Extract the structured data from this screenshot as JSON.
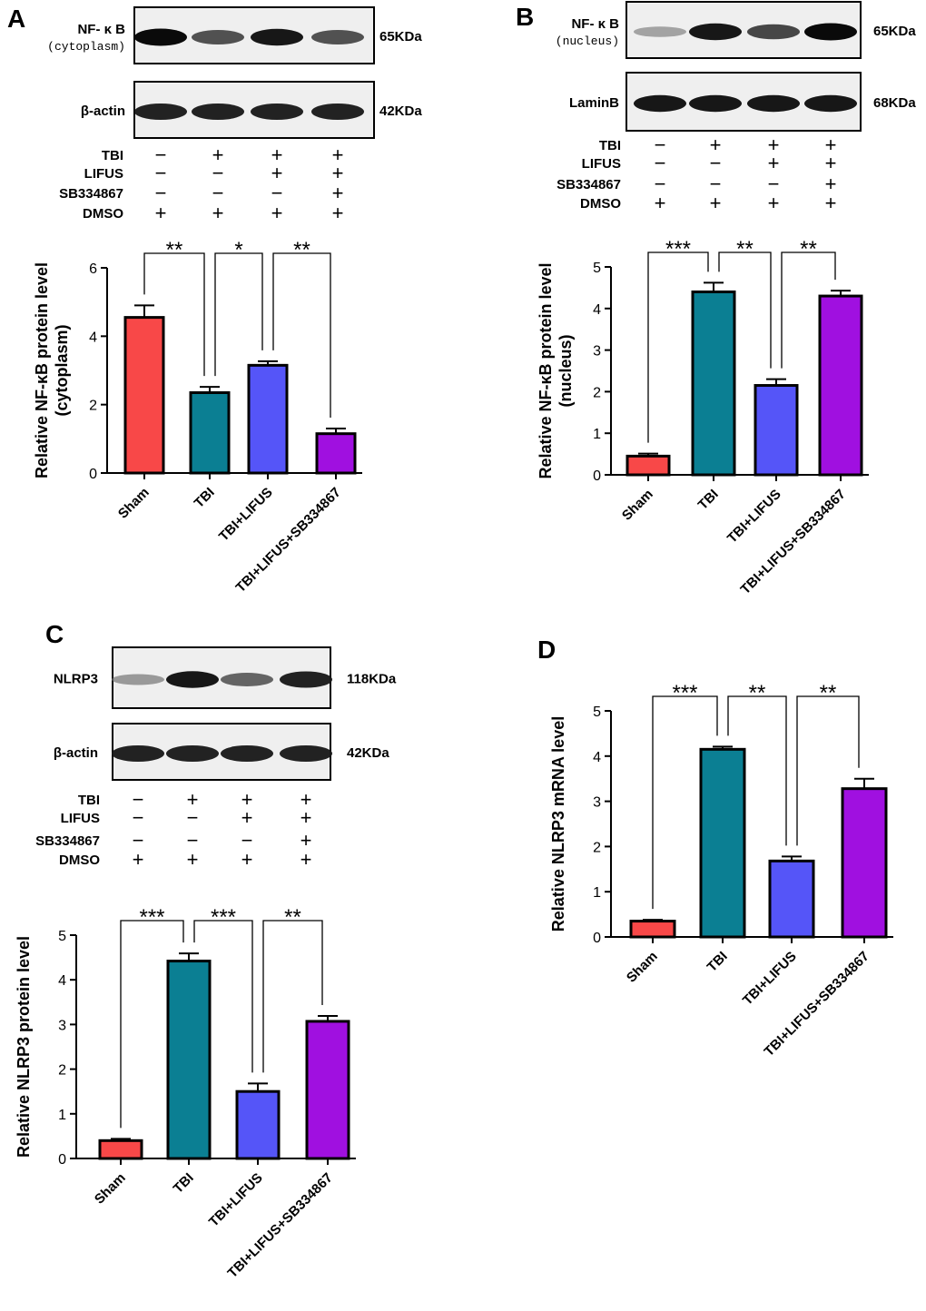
{
  "colors": {
    "sham": "#f84848",
    "tbi": "#0b7f93",
    "tbi_lifus": "#5555f8",
    "tbi_lifus_sb": "#a010e0",
    "frame": "#000000"
  },
  "treatment_table": {
    "rows": [
      "TBI",
      "LIFUS",
      "SB334867",
      "DMSO"
    ],
    "matrix": [
      [
        "−",
        "+",
        "+",
        "+"
      ],
      [
        "−",
        "−",
        "+",
        "+"
      ],
      [
        "−",
        "−",
        "−",
        "+"
      ],
      [
        "+",
        "+",
        "+",
        "+"
      ]
    ]
  },
  "panels": [
    {
      "letter": "A",
      "blots": [
        {
          "label": "NF- κ B",
          "sublabel": "(cytoplasm)",
          "size": "65KDa",
          "bands": [
            1.0,
            0.7,
            0.95,
            0.7
          ]
        },
        {
          "label": "β-actin",
          "sublabel": "",
          "size": "42KDa",
          "bands": [
            0.9,
            0.9,
            0.9,
            0.9
          ]
        }
      ]
    },
    {
      "letter": "B",
      "blots": [
        {
          "label": "NF- κ B",
          "sublabel": "(nucleus)",
          "size": "65KDa",
          "bands": [
            0.25,
            0.95,
            0.75,
            1.0
          ]
        },
        {
          "label": "LaminB",
          "sublabel": "",
          "size": "68KDa",
          "bands": [
            0.95,
            0.95,
            0.95,
            0.95
          ]
        }
      ]
    },
    {
      "letter": "C",
      "blots": [
        {
          "label": "NLRP3",
          "sublabel": "",
          "size": "118KDa",
          "bands": [
            0.3,
            0.95,
            0.6,
            0.9
          ]
        },
        {
          "label": "β-actin",
          "sublabel": "",
          "size": "42KDa",
          "bands": [
            0.9,
            0.9,
            0.9,
            0.9
          ]
        }
      ]
    },
    {
      "letter": "D",
      "blots": []
    }
  ],
  "chart_data": [
    {
      "panel": "A",
      "type": "bar",
      "categories": [
        "Sham",
        "TBI",
        "TBI+LIFUS",
        "TBI+LIFUS+SB334867"
      ],
      "values": [
        4.55,
        2.35,
        3.15,
        1.15
      ],
      "errors": [
        0.35,
        0.17,
        0.12,
        0.15
      ],
      "ylabel": "Relative NF-κB protein level",
      "ylabel2": "(cytoplasm)",
      "ylim": [
        0,
        6
      ],
      "yticks": [
        0,
        2,
        4,
        6
      ],
      "significance": [
        {
          "from": 0,
          "to": 1,
          "label": "**"
        },
        {
          "from": 1,
          "to": 2,
          "label": "*"
        },
        {
          "from": 2,
          "to": 3,
          "label": "**"
        }
      ]
    },
    {
      "panel": "B",
      "type": "bar",
      "categories": [
        "Sham",
        "TBI",
        "TBI+LIFUS",
        "TBI+LIFUS+SB334867"
      ],
      "values": [
        0.45,
        4.4,
        2.15,
        4.3
      ],
      "errors": [
        0.06,
        0.22,
        0.15,
        0.13
      ],
      "ylabel": "Relative NF-κB protein level",
      "ylabel2": "(nucleus)",
      "ylim": [
        0,
        5
      ],
      "yticks": [
        0,
        1,
        2,
        3,
        4,
        5
      ],
      "significance": [
        {
          "from": 0,
          "to": 1,
          "label": "***"
        },
        {
          "from": 1,
          "to": 2,
          "label": "**"
        },
        {
          "from": 2,
          "to": 3,
          "label": "**"
        }
      ]
    },
    {
      "panel": "C",
      "type": "bar",
      "categories": [
        "Sham",
        "TBI",
        "TBI+LIFUS",
        "TBI+LIFUS+SB334867"
      ],
      "values": [
        0.4,
        4.42,
        1.5,
        3.07
      ],
      "errors": [
        0.04,
        0.17,
        0.18,
        0.12
      ],
      "ylabel": "Relative NLRP3 protein level",
      "ylabel2": "",
      "ylim": [
        0,
        5
      ],
      "yticks": [
        0,
        1,
        2,
        3,
        4,
        5
      ],
      "significance": [
        {
          "from": 0,
          "to": 1,
          "label": "***"
        },
        {
          "from": 1,
          "to": 2,
          "label": "***"
        },
        {
          "from": 2,
          "to": 3,
          "label": "**"
        }
      ]
    },
    {
      "panel": "D",
      "type": "bar",
      "categories": [
        "Sham",
        "TBI",
        "TBI+LIFUS",
        "TBI+LIFUS+SB334867"
      ],
      "values": [
        0.35,
        4.15,
        1.68,
        3.28
      ],
      "errors": [
        0.03,
        0.06,
        0.1,
        0.22
      ],
      "ylabel": "Relative NLRP3 mRNA level",
      "ylabel2": "",
      "ylim": [
        0,
        5
      ],
      "yticks": [
        0,
        1,
        2,
        3,
        4,
        5
      ],
      "significance": [
        {
          "from": 0,
          "to": 1,
          "label": "***"
        },
        {
          "from": 1,
          "to": 2,
          "label": "**"
        },
        {
          "from": 2,
          "to": 3,
          "label": "**"
        }
      ]
    }
  ]
}
